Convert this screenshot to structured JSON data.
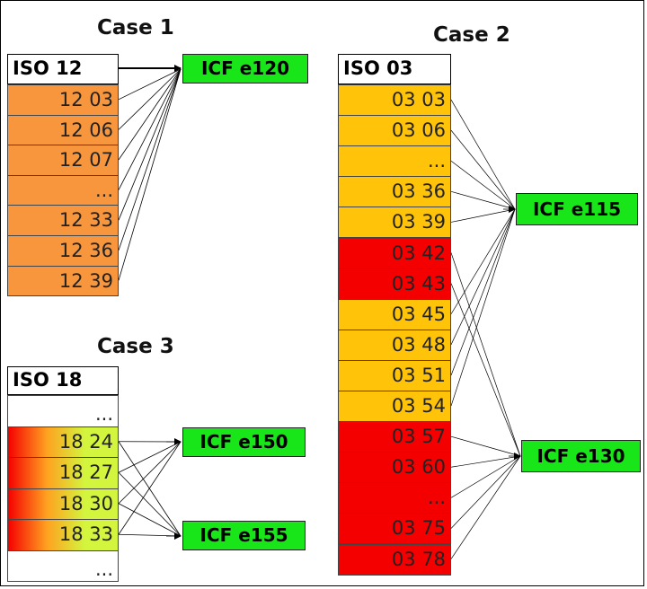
{
  "colors": {
    "orange": "#f7963d",
    "yellow": "#ffc40a",
    "red": "#f50000",
    "green": "#19e619",
    "lime": "#d4f53d",
    "white": "#ffffff"
  },
  "case1": {
    "title": "Case 1",
    "header": "ISO 12",
    "rows": [
      {
        "label": "12 03",
        "color": "orange"
      },
      {
        "label": "12 06",
        "color": "orange"
      },
      {
        "label": "12 07",
        "color": "orange"
      },
      {
        "label": "...",
        "color": "orange"
      },
      {
        "label": "12 33",
        "color": "orange"
      },
      {
        "label": "12 36",
        "color": "orange"
      },
      {
        "label": "12 39",
        "color": "orange"
      }
    ],
    "targets": [
      {
        "label": "ICF e120"
      }
    ]
  },
  "case2": {
    "title": "Case 2",
    "header": "ISO 03",
    "rows": [
      {
        "label": "03 03",
        "color": "yellow"
      },
      {
        "label": "03 06",
        "color": "yellow"
      },
      {
        "label": "...",
        "color": "yellow"
      },
      {
        "label": "03 36",
        "color": "yellow"
      },
      {
        "label": "03 39",
        "color": "yellow"
      },
      {
        "label": "03 42",
        "color": "red"
      },
      {
        "label": "03 43",
        "color": "red"
      },
      {
        "label": "03 45",
        "color": "yellow"
      },
      {
        "label": "03 48",
        "color": "yellow"
      },
      {
        "label": "03 51",
        "color": "yellow"
      },
      {
        "label": "03 54",
        "color": "yellow"
      },
      {
        "label": "03 57",
        "color": "red"
      },
      {
        "label": "03 60",
        "color": "red"
      },
      {
        "label": "...",
        "color": "red"
      },
      {
        "label": "03 75",
        "color": "red"
      },
      {
        "label": "03 78",
        "color": "red"
      }
    ],
    "targets": [
      {
        "label": "ICF e115"
      },
      {
        "label": "ICF e130"
      }
    ]
  },
  "case3": {
    "title": "Case 3",
    "header": "ISO 18",
    "rows": [
      {
        "label": "...",
        "color": "white"
      },
      {
        "label": "18 24",
        "color": "gradient"
      },
      {
        "label": "18 27",
        "color": "gradient"
      },
      {
        "label": "18 30",
        "color": "gradient"
      },
      {
        "label": "18 33",
        "color": "gradient"
      },
      {
        "label": "...",
        "color": "white"
      }
    ],
    "targets": [
      {
        "label": "ICF e150"
      },
      {
        "label": "ICF e155"
      }
    ]
  }
}
